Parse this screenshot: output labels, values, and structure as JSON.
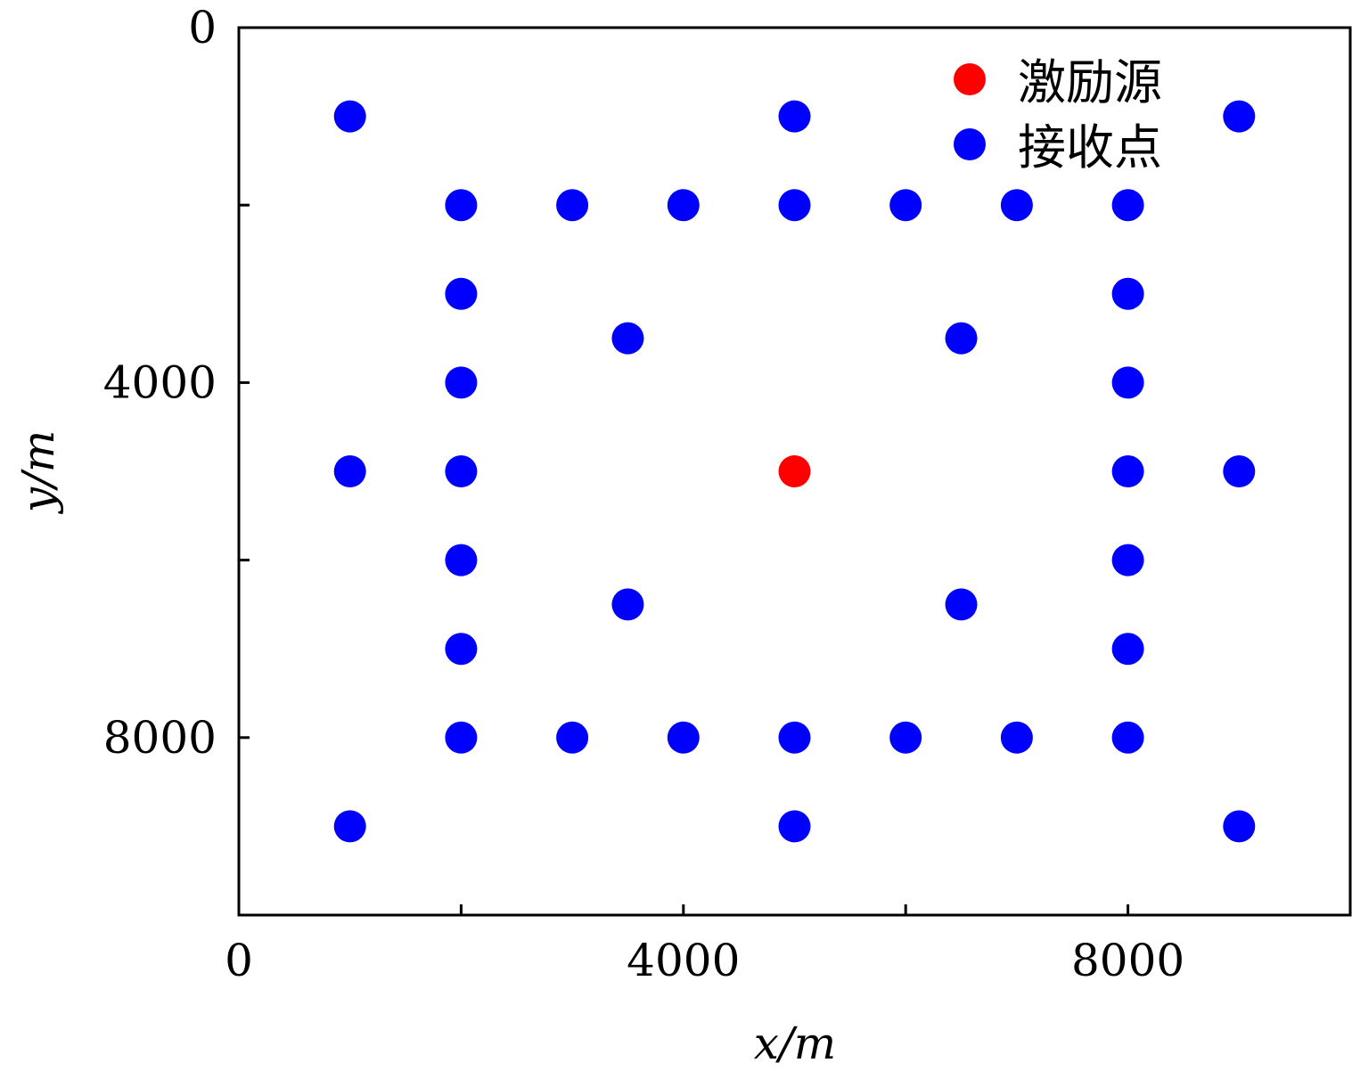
{
  "chart_data": {
    "type": "scatter",
    "title": "",
    "xlabel": "x/m",
    "ylabel": "y/m",
    "xlim": [
      0,
      10000
    ],
    "ylim": [
      0,
      10000
    ],
    "y_inverted": true,
    "grid": false,
    "legend_position": "top-right",
    "x_ticks": [
      0,
      2000,
      4000,
      6000,
      8000
    ],
    "y_ticks": [
      0,
      2000,
      4000,
      6000,
      8000
    ],
    "x_tick_labels": [
      "0",
      "",
      "4000",
      "",
      "8000"
    ],
    "y_tick_labels": [
      "0",
      "",
      "4000",
      "",
      "8000"
    ],
    "series": [
      {
        "name": "激励源",
        "color": "#ff0000",
        "points": [
          [
            5000,
            5000
          ]
        ]
      },
      {
        "name": "接收点",
        "color": "#0000ff",
        "points": [
          [
            1000,
            1000
          ],
          [
            5000,
            1000
          ],
          [
            9000,
            1000
          ],
          [
            2000,
            2000
          ],
          [
            3000,
            2000
          ],
          [
            4000,
            2000
          ],
          [
            5000,
            2000
          ],
          [
            6000,
            2000
          ],
          [
            7000,
            2000
          ],
          [
            8000,
            2000
          ],
          [
            2000,
            3000
          ],
          [
            8000,
            3000
          ],
          [
            3500,
            3500
          ],
          [
            6500,
            3500
          ],
          [
            2000,
            4000
          ],
          [
            8000,
            4000
          ],
          [
            1000,
            5000
          ],
          [
            2000,
            5000
          ],
          [
            8000,
            5000
          ],
          [
            9000,
            5000
          ],
          [
            2000,
            6000
          ],
          [
            8000,
            6000
          ],
          [
            3500,
            6500
          ],
          [
            6500,
            6500
          ],
          [
            2000,
            7000
          ],
          [
            8000,
            7000
          ],
          [
            2000,
            8000
          ],
          [
            3000,
            8000
          ],
          [
            4000,
            8000
          ],
          [
            5000,
            8000
          ],
          [
            6000,
            8000
          ],
          [
            7000,
            8000
          ],
          [
            8000,
            8000
          ],
          [
            1000,
            9000
          ],
          [
            5000,
            9000
          ],
          [
            9000,
            9000
          ]
        ]
      }
    ]
  }
}
